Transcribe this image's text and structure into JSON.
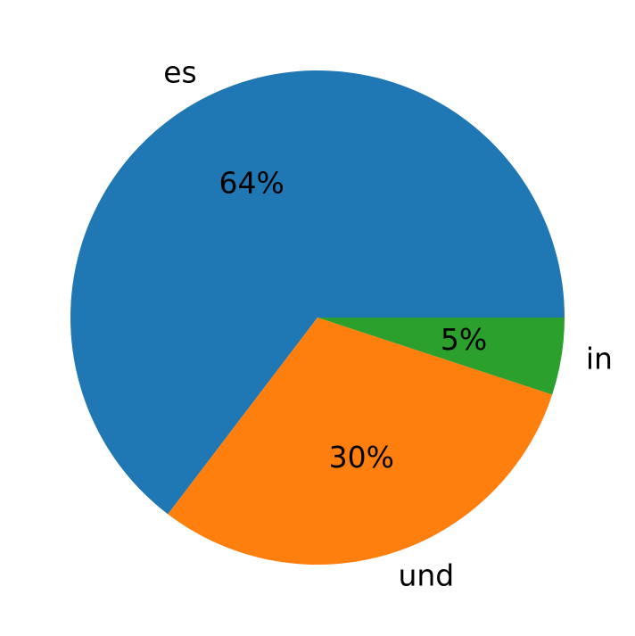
{
  "chart_data": {
    "type": "pie",
    "categories": [
      "es",
      "und",
      "in"
    ],
    "values": [
      64,
      30,
      5
    ],
    "value_labels": [
      "64%",
      "30%",
      "5%"
    ],
    "colors": [
      "#1f77b4",
      "#ff7f0e",
      "#2ca02c"
    ]
  }
}
